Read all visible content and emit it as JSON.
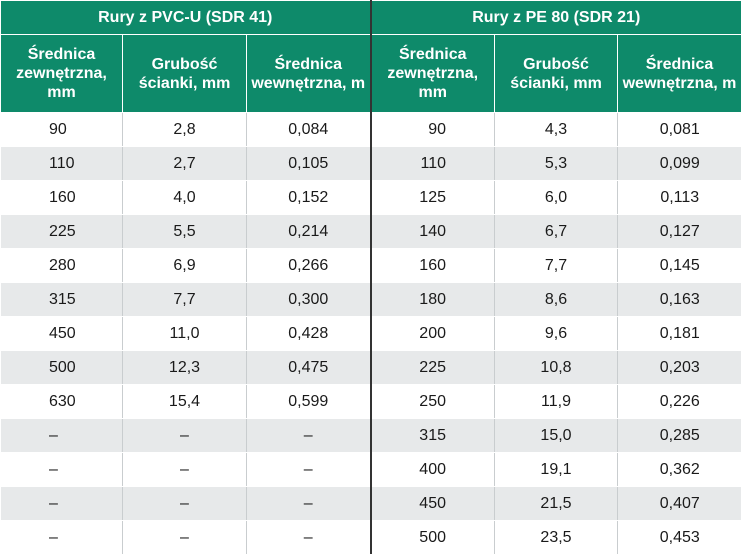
{
  "groups": [
    {
      "title": "Rury z PVC-U (SDR 41)"
    },
    {
      "title": "Rury z PE 80 (SDR 21)"
    }
  ],
  "headers": [
    "Średnica zewnętrzna, mm",
    "Grubość ścianki, mm",
    "Średnica wewnętrzna, m",
    "Średnica zewnętrzna, mm",
    "Grubość ścianki, mm",
    "Średnica wewnętrzna, m"
  ],
  "rows": [
    [
      "90",
      "2,8",
      "0,084",
      "90",
      "4,3",
      "0,081"
    ],
    [
      "110",
      "2,7",
      "0,105",
      "110",
      "5,3",
      "0,099"
    ],
    [
      "160",
      "4,0",
      "0,152",
      "125",
      "6,0",
      "0,113"
    ],
    [
      "225",
      "5,5",
      "0,214",
      "140",
      "6,7",
      "0,127"
    ],
    [
      "280",
      "6,9",
      "0,266",
      "160",
      "7,7",
      "0,145"
    ],
    [
      "315",
      "7,7",
      "0,300",
      "180",
      "8,6",
      "0,163"
    ],
    [
      "450",
      "11,0",
      "0,428",
      "200",
      "9,6",
      "0,181"
    ],
    [
      "500",
      "12,3",
      "0,475",
      "225",
      "10,8",
      "0,203"
    ],
    [
      "630",
      "15,4",
      "0,599",
      "250",
      "11,9",
      "0,226"
    ],
    [
      "–",
      "–",
      "–",
      "315",
      "15,0",
      "0,285"
    ],
    [
      "–",
      "–",
      "–",
      "400",
      "19,1",
      "0,362"
    ],
    [
      "–",
      "–",
      "–",
      "450",
      "21,5",
      "0,407"
    ],
    [
      "–",
      "–",
      "–",
      "500",
      "23,5",
      "0,453"
    ]
  ],
  "colors": {
    "header_bg": "#0e8a6a",
    "stripe": "#e7e9ea"
  }
}
